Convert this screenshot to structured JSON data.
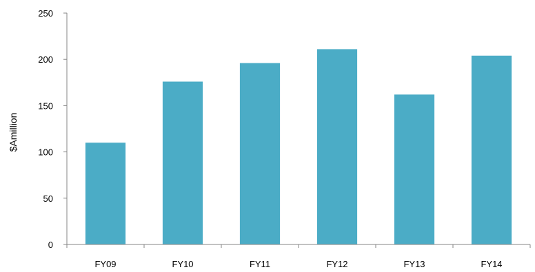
{
  "chart_data": {
    "type": "bar",
    "title": "",
    "xlabel": "",
    "ylabel": "$Amillion",
    "categories": [
      "FY09",
      "FY10",
      "FY11",
      "FY12",
      "FY13",
      "FY14"
    ],
    "values": [
      110,
      176,
      196,
      211,
      162,
      204
    ],
    "ylim": [
      0,
      250
    ],
    "yticks": [
      "0",
      "50",
      "100",
      "150",
      "200",
      "250"
    ],
    "grid": false,
    "legend": "none",
    "bar_color": "#4BACC6",
    "axis_color": "#868686"
  }
}
